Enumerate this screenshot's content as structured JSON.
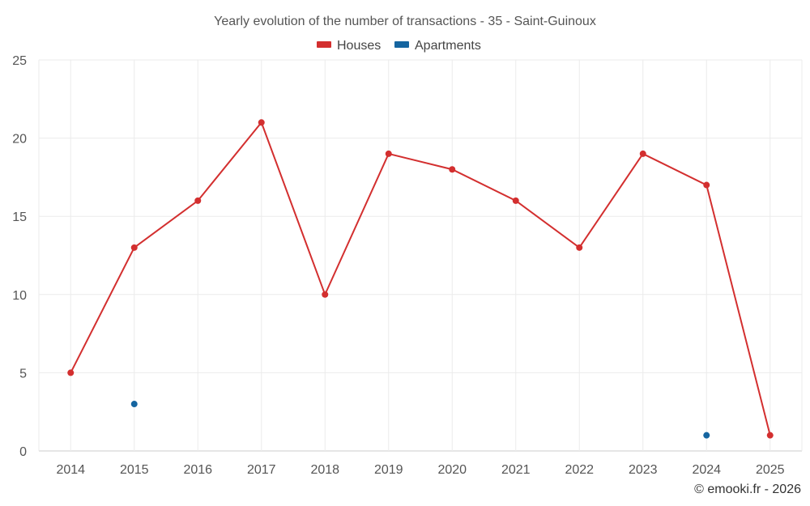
{
  "chart_data": {
    "type": "line",
    "title": "Yearly evolution of the number of transactions - 35 - Saint-Guinoux",
    "categories": [
      "2014",
      "2015",
      "2016",
      "2017",
      "2018",
      "2019",
      "2020",
      "2021",
      "2022",
      "2023",
      "2024",
      "2025"
    ],
    "series": [
      {
        "name": "Houses",
        "color": "#d32f2f",
        "values": [
          5,
          13,
          16,
          21,
          10,
          19,
          18,
          16,
          13,
          19,
          17,
          1
        ]
      },
      {
        "name": "Apartments",
        "color": "#1565a0",
        "values": [
          null,
          3,
          null,
          null,
          null,
          null,
          null,
          null,
          null,
          null,
          1,
          null
        ]
      }
    ],
    "ylim": [
      0,
      25
    ],
    "yticks": [
      "0",
      "5",
      "10",
      "15",
      "20",
      "25"
    ],
    "xlabel": "",
    "ylabel": "",
    "grid": true,
    "legend": "top-center"
  },
  "credit": "© emooki.fr - 2026"
}
